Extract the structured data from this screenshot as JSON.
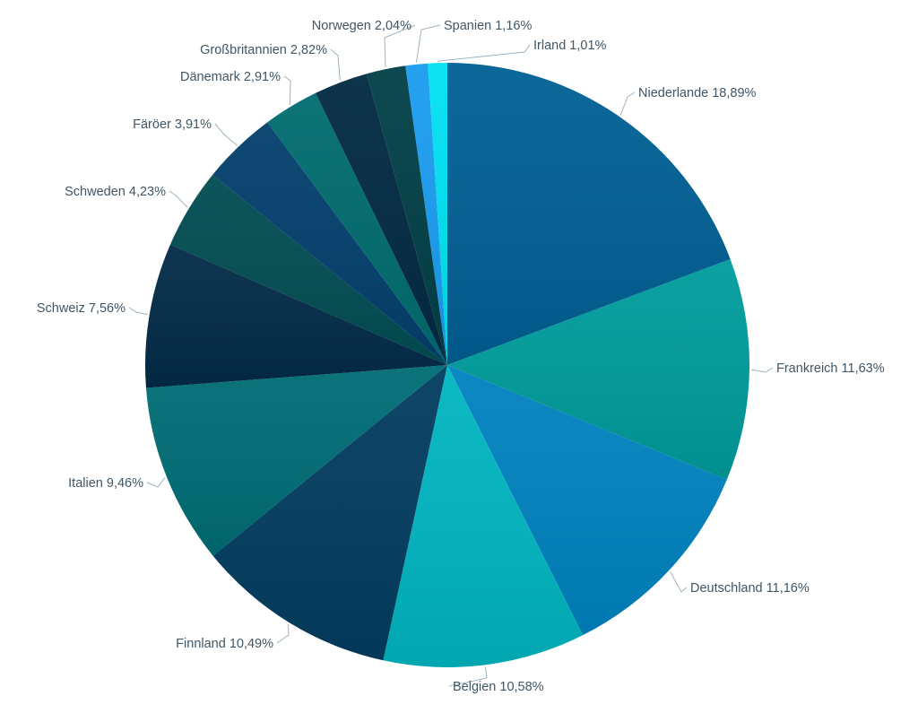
{
  "chart_data": {
    "type": "pie",
    "title": "",
    "start": "top",
    "direction": "clockwise",
    "slices": [
      {
        "name": "Niederlande",
        "value": 18.89,
        "label": "Niederlande 18,89%",
        "color": "#005f94"
      },
      {
        "name": "Frankreich",
        "value": 11.63,
        "label": "Frankreich 11,63%",
        "color": "#009b9b"
      },
      {
        "name": "Deutschland",
        "value": 11.16,
        "label": "Deutschland 11,16%",
        "color": "#0082bf"
      },
      {
        "name": "Belgien",
        "value": 10.58,
        "label": "Belgien 10,58%",
        "color": "#00b5c0"
      },
      {
        "name": "Finnland",
        "value": 10.49,
        "label": "Finnland 10,49%",
        "color": "#023c5f"
      },
      {
        "name": "Italien",
        "value": 9.46,
        "label": "Italien 9,46%",
        "color": "#006c74"
      },
      {
        "name": "Schweiz",
        "value": 7.56,
        "label": "Schweiz 7,56%",
        "color": "#022a47"
      },
      {
        "name": "Schweden",
        "value": 4.23,
        "label": "Schweden 4,23%",
        "color": "#014c52"
      },
      {
        "name": "Färöer",
        "value": 3.91,
        "label": "Färöer 3,91%",
        "color": "#023f6c"
      },
      {
        "name": "Dänemark",
        "value": 2.91,
        "label": "Dänemark 2,91%",
        "color": "#006b6e"
      },
      {
        "name": "Großbritannien",
        "value": 2.82,
        "label": "Großbritannien 2,82%",
        "color": "#012942"
      },
      {
        "name": "Norwegen",
        "value": 2.04,
        "label": "Norwegen 2,04%",
        "color": "#013f46"
      },
      {
        "name": "Spanien",
        "value": 1.16,
        "label": "Spanien 1,16%",
        "color": "#1a9cf0"
      },
      {
        "name": "Irland",
        "value": 1.01,
        "label": "Irland 1,01%",
        "color": "#00e1f2"
      }
    ]
  }
}
